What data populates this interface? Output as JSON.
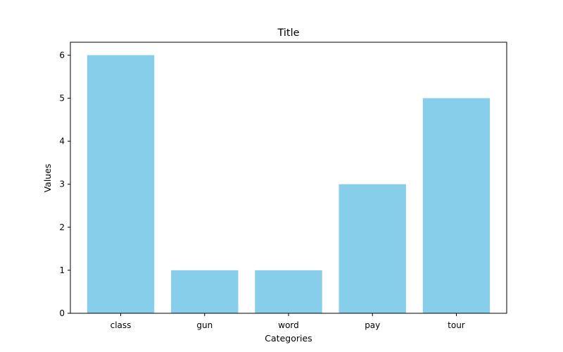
{
  "chart_data": {
    "type": "bar",
    "title": "Title",
    "xlabel": "Categories",
    "ylabel": "Values",
    "categories": [
      "class",
      "gun",
      "word",
      "pay",
      "tour"
    ],
    "values": [
      6,
      1,
      1,
      3,
      5
    ],
    "ylim": [
      0,
      6.3
    ],
    "yticks": [
      0,
      1,
      2,
      3,
      4,
      5,
      6
    ],
    "bar_color": "#87ceeb",
    "grid": false,
    "legend": "none"
  }
}
